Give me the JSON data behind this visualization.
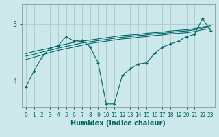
{
  "xlabel": "Humidex (Indice chaleur)",
  "xlim": [
    -0.5,
    23.5
  ],
  "ylim": [
    3.55,
    5.35
  ],
  "yticks": [
    4,
    5
  ],
  "xticks": [
    0,
    1,
    2,
    3,
    4,
    5,
    6,
    7,
    8,
    9,
    10,
    11,
    12,
    13,
    14,
    15,
    16,
    17,
    18,
    19,
    20,
    21,
    22,
    23
  ],
  "bg_color": "#cce8ea",
  "grid_color": "#aacfd3",
  "line_color": "#006666",
  "wiggly_line": {
    "x": [
      0,
      1,
      2,
      3,
      4,
      5,
      6,
      7,
      8,
      9,
      10,
      11,
      12,
      13,
      14,
      15,
      16,
      17,
      18,
      19,
      20,
      21,
      22,
      23
    ],
    "y": [
      3.9,
      4.18,
      4.42,
      4.58,
      4.62,
      4.78,
      4.7,
      4.72,
      4.6,
      4.32,
      3.6,
      3.6,
      4.1,
      4.22,
      4.3,
      4.32,
      4.48,
      4.6,
      4.65,
      4.7,
      4.78,
      4.82,
      5.1,
      4.88
    ]
  },
  "smooth_lines": [
    {
      "x": [
        0,
        1,
        2,
        3,
        4,
        5,
        6,
        7,
        8,
        9,
        10,
        11,
        12,
        13,
        14,
        15,
        16,
        17,
        18,
        19,
        20,
        21,
        22,
        23
      ],
      "y": [
        4.38,
        4.42,
        4.46,
        4.5,
        4.54,
        4.57,
        4.6,
        4.63,
        4.66,
        4.68,
        4.7,
        4.72,
        4.74,
        4.75,
        4.77,
        4.78,
        4.8,
        4.81,
        4.83,
        4.84,
        4.85,
        4.87,
        4.9,
        4.92
      ]
    },
    {
      "x": [
        0,
        1,
        2,
        3,
        4,
        5,
        6,
        7,
        8,
        9,
        10,
        11,
        12,
        13,
        14,
        15,
        16,
        17,
        18,
        19,
        20,
        21,
        22,
        23
      ],
      "y": [
        4.44,
        4.47,
        4.51,
        4.54,
        4.58,
        4.61,
        4.64,
        4.67,
        4.69,
        4.71,
        4.73,
        4.75,
        4.77,
        4.78,
        4.8,
        4.81,
        4.83,
        4.84,
        4.85,
        4.87,
        4.88,
        4.9,
        4.93,
        4.95
      ]
    },
    {
      "x": [
        0,
        1,
        2,
        3,
        4,
        5,
        6,
        7,
        8,
        9,
        10,
        11,
        12,
        13,
        14,
        15,
        16,
        17,
        18,
        19,
        20,
        21,
        22,
        23
      ],
      "y": [
        4.48,
        4.52,
        4.55,
        4.58,
        4.62,
        4.65,
        4.68,
        4.7,
        4.72,
        4.74,
        4.76,
        4.78,
        4.8,
        4.81,
        4.82,
        4.84,
        4.85,
        4.86,
        4.88,
        4.89,
        4.9,
        4.92,
        4.95,
        4.97
      ]
    }
  ]
}
